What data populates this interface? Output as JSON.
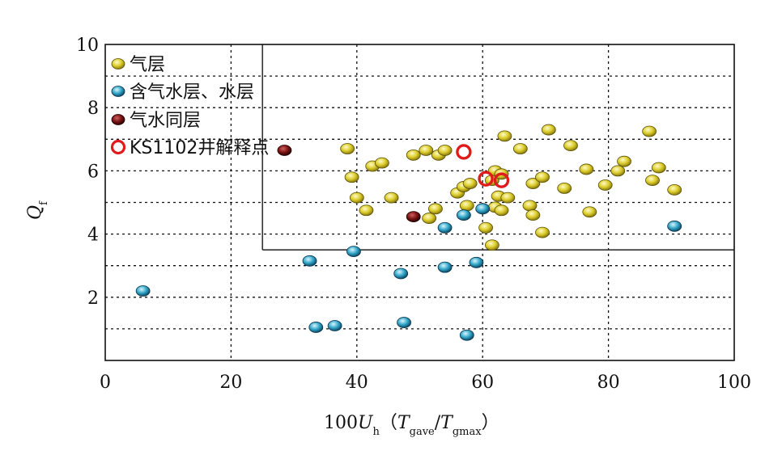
{
  "chart_data": {
    "type": "scatter",
    "xlim": [
      0,
      100
    ],
    "ylim": [
      0,
      10
    ],
    "x_ticks": [
      "0",
      "20",
      "40",
      "60",
      "80",
      "100"
    ],
    "y_ticks": [
      "2",
      "4",
      "6",
      "8",
      "10"
    ],
    "xlabel": {
      "prefix": "100",
      "var": "U",
      "var_sub": "h",
      "open": "（",
      "t1": "T",
      "t1_sub": "gave",
      "slash": "/",
      "t2": "T",
      "t2_sub": "gmax",
      "close": "）"
    },
    "ylabel": {
      "var": "Q",
      "var_sub": "f"
    },
    "grid": "dotted",
    "legend_position": "top-left",
    "cutoff_lines": {
      "x": 25,
      "y": 3.5
    },
    "series": [
      {
        "name": "气层",
        "color": "#d8cc2a",
        "marker": "filled-ellipse",
        "points": [
          [
            38.5,
            6.7
          ],
          [
            39.2,
            5.8
          ],
          [
            40,
            5.15
          ],
          [
            41.5,
            4.75
          ],
          [
            42.5,
            6.15
          ],
          [
            44,
            6.25
          ],
          [
            45.5,
            5.15
          ],
          [
            49,
            6.5
          ],
          [
            51,
            6.65
          ],
          [
            51.5,
            4.5
          ],
          [
            52.5,
            4.8
          ],
          [
            53,
            6.5
          ],
          [
            54,
            6.65
          ],
          [
            56,
            5.3
          ],
          [
            57,
            5.5
          ],
          [
            57.5,
            4.9
          ],
          [
            58,
            5.6
          ],
          [
            60.5,
            4.2
          ],
          [
            61.5,
            3.65
          ],
          [
            61.5,
            5.7
          ],
          [
            62,
            4.85
          ],
          [
            62,
            6.0
          ],
          [
            62.5,
            5.2
          ],
          [
            63,
            4.75
          ],
          [
            63,
            5.9
          ],
          [
            63.5,
            7.1
          ],
          [
            64,
            5.15
          ],
          [
            66,
            6.7
          ],
          [
            67.5,
            4.9
          ],
          [
            68,
            4.6
          ],
          [
            68,
            5.6
          ],
          [
            69.5,
            5.8
          ],
          [
            69.5,
            4.05
          ],
          [
            70.5,
            7.3
          ],
          [
            73,
            5.45
          ],
          [
            74,
            6.8
          ],
          [
            76.5,
            6.05
          ],
          [
            77,
            4.7
          ],
          [
            79.5,
            5.55
          ],
          [
            81.5,
            6.0
          ],
          [
            82.5,
            6.3
          ],
          [
            86.5,
            7.25
          ],
          [
            87,
            5.7
          ],
          [
            88,
            6.1
          ],
          [
            90.5,
            5.4
          ]
        ]
      },
      {
        "name": "含气水层、水层",
        "color": "#33a6c8",
        "marker": "filled-ellipse",
        "points": [
          [
            6,
            2.2
          ],
          [
            32.5,
            3.15
          ],
          [
            33.5,
            1.05
          ],
          [
            36.5,
            1.1
          ],
          [
            39.5,
            3.45
          ],
          [
            47,
            2.75
          ],
          [
            47.5,
            1.2
          ],
          [
            54,
            4.2
          ],
          [
            54,
            2.95
          ],
          [
            57.5,
            0.8
          ],
          [
            57,
            4.6
          ],
          [
            59,
            3.1
          ],
          [
            60,
            4.8
          ],
          [
            90.5,
            4.25
          ]
        ]
      },
      {
        "name": "气水同层",
        "color": "#7a1414",
        "marker": "filled-ellipse",
        "points": [
          [
            28.5,
            6.65
          ],
          [
            49,
            4.55
          ]
        ]
      },
      {
        "name": "KS1102井解释点",
        "color": "#e01b1b",
        "marker": "open-circle",
        "points": [
          [
            57,
            6.6
          ],
          [
            60.5,
            5.75
          ],
          [
            63,
            5.7
          ]
        ]
      }
    ]
  }
}
